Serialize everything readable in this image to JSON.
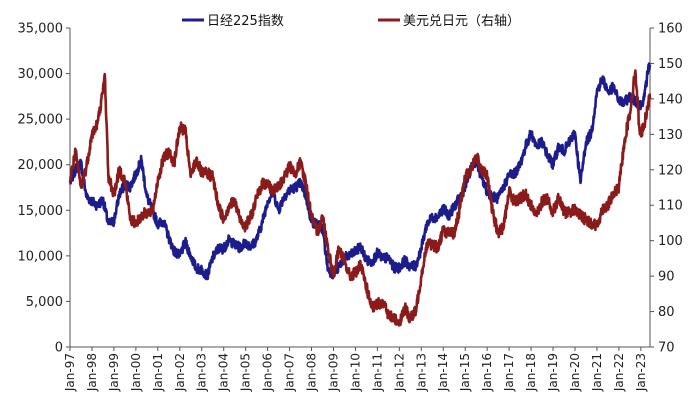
{
  "chart_data": {
    "type": "line",
    "title": "",
    "legend_position": "top",
    "grid": false,
    "x_range": [
      "1997-01",
      "2023-06"
    ],
    "x_tick_labels": [
      "Jan-97",
      "Jan-98",
      "Jan-99",
      "Jan-00",
      "Jan-01",
      "Jan-02",
      "Jan-03",
      "Jan-04",
      "Jan-05",
      "Jan-06",
      "Jan-07",
      "Jan-08",
      "Jan-09",
      "Jan-10",
      "Jan-11",
      "Jan-12",
      "Jan-13",
      "Jan-14",
      "Jan-15",
      "Jan-16",
      "Jan-17",
      "Jan-18",
      "Jan-19",
      "Jan-20",
      "Jan-21",
      "Jan-22",
      "Jan-23"
    ],
    "y_left": {
      "range": [
        0,
        35000
      ],
      "tick_labels": [
        "0",
        "5,000",
        "10,000",
        "15,000",
        "20,000",
        "25,000",
        "30,000",
        "35,000"
      ]
    },
    "y_right": {
      "range": [
        70,
        160
      ],
      "tick_labels": [
        "70",
        "80",
        "90",
        "100",
        "110",
        "120",
        "130",
        "140",
        "150",
        "160"
      ]
    },
    "series": [
      {
        "name": "日经225指数",
        "axis": "left",
        "color": "#1c1c8c",
        "points": [
          [
            "1997-01",
            18000
          ],
          [
            "1997-04",
            19500
          ],
          [
            "1997-07",
            20200
          ],
          [
            "1997-10",
            16500
          ],
          [
            "1998-01",
            16000
          ],
          [
            "1998-04",
            15500
          ],
          [
            "1998-07",
            16200
          ],
          [
            "1998-10",
            13500
          ],
          [
            "1999-01",
            13800
          ],
          [
            "1999-04",
            16800
          ],
          [
            "1999-07",
            17800
          ],
          [
            "1999-10",
            17600
          ],
          [
            "2000-01",
            19000
          ],
          [
            "2000-04",
            20500
          ],
          [
            "2000-07",
            16500
          ],
          [
            "2000-10",
            15000
          ],
          [
            "2001-01",
            13500
          ],
          [
            "2001-04",
            13800
          ],
          [
            "2001-07",
            12000
          ],
          [
            "2001-10",
            10500
          ],
          [
            "2002-01",
            10000
          ],
          [
            "2002-04",
            11500
          ],
          [
            "2002-07",
            10000
          ],
          [
            "2002-10",
            8600
          ],
          [
            "2003-01",
            8500
          ],
          [
            "2003-04",
            7800
          ],
          [
            "2003-07",
            9800
          ],
          [
            "2003-10",
            10800
          ],
          [
            "2004-01",
            10800
          ],
          [
            "2004-04",
            11800
          ],
          [
            "2004-07",
            11200
          ],
          [
            "2004-10",
            10900
          ],
          [
            "2005-01",
            11500
          ],
          [
            "2005-04",
            11000
          ],
          [
            "2005-07",
            11800
          ],
          [
            "2005-10",
            13600
          ],
          [
            "2006-01",
            16000
          ],
          [
            "2006-04",
            17000
          ],
          [
            "2006-07",
            15000
          ],
          [
            "2006-10",
            16500
          ],
          [
            "2007-01",
            17200
          ],
          [
            "2007-04",
            17500
          ],
          [
            "2007-07",
            18000
          ],
          [
            "2007-10",
            16500
          ],
          [
            "2008-01",
            13700
          ],
          [
            "2008-04",
            13500
          ],
          [
            "2008-07",
            13000
          ],
          [
            "2008-10",
            8500
          ],
          [
            "2009-01",
            8000
          ],
          [
            "2009-04",
            8800
          ],
          [
            "2009-07",
            9800
          ],
          [
            "2009-10",
            10000
          ],
          [
            "2010-01",
            10500
          ],
          [
            "2010-04",
            11000
          ],
          [
            "2010-07",
            9500
          ],
          [
            "2010-10",
            9300
          ],
          [
            "2011-01",
            10300
          ],
          [
            "2011-04",
            9700
          ],
          [
            "2011-07",
            9800
          ],
          [
            "2011-10",
            8700
          ],
          [
            "2012-01",
            8700
          ],
          [
            "2012-04",
            9500
          ],
          [
            "2012-07",
            8800
          ],
          [
            "2012-10",
            8900
          ],
          [
            "2013-01",
            10800
          ],
          [
            "2013-04",
            13500
          ],
          [
            "2013-07",
            14200
          ],
          [
            "2013-10",
            14300
          ],
          [
            "2014-01",
            15200
          ],
          [
            "2014-04",
            14400
          ],
          [
            "2014-07",
            15400
          ],
          [
            "2014-10",
            16400
          ],
          [
            "2015-01",
            17500
          ],
          [
            "2015-04",
            19500
          ],
          [
            "2015-07",
            20500
          ],
          [
            "2015-10",
            18500
          ],
          [
            "2016-01",
            17000
          ],
          [
            "2016-04",
            16500
          ],
          [
            "2016-07",
            16300
          ],
          [
            "2016-10",
            17500
          ],
          [
            "2017-01",
            19000
          ],
          [
            "2017-04",
            19000
          ],
          [
            "2017-07",
            20000
          ],
          [
            "2017-10",
            22000
          ],
          [
            "2018-01",
            23500
          ],
          [
            "2018-04",
            22000
          ],
          [
            "2018-07",
            22500
          ],
          [
            "2018-10",
            21000
          ],
          [
            "2019-01",
            20000
          ],
          [
            "2019-04",
            22000
          ],
          [
            "2019-07",
            21500
          ],
          [
            "2019-10",
            22500
          ],
          [
            "2020-01",
            23500
          ],
          [
            "2020-04",
            18000
          ],
          [
            "2020-07",
            22500
          ],
          [
            "2020-10",
            23500
          ],
          [
            "2021-01",
            28000
          ],
          [
            "2021-04",
            29500
          ],
          [
            "2021-07",
            28000
          ],
          [
            "2021-10",
            28500
          ],
          [
            "2022-01",
            27000
          ],
          [
            "2022-04",
            26800
          ],
          [
            "2022-07",
            27500
          ],
          [
            "2022-10",
            27000
          ],
          [
            "2023-01",
            26500
          ],
          [
            "2023-03",
            27500
          ],
          [
            "2023-05",
            30500
          ],
          [
            "2023-06",
            31000
          ]
        ]
      },
      {
        "name": "美元兑日元（右轴）",
        "axis": "right",
        "color": "#8b1a1a",
        "points": [
          [
            "1997-01",
            117
          ],
          [
            "1997-04",
            125
          ],
          [
            "1997-07",
            115
          ],
          [
            "1997-10",
            121
          ],
          [
            "1998-01",
            130
          ],
          [
            "1998-04",
            133
          ],
          [
            "1998-07",
            142
          ],
          [
            "1998-08",
            147
          ],
          [
            "1998-10",
            118
          ],
          [
            "1999-01",
            113
          ],
          [
            "1999-04",
            120
          ],
          [
            "1999-07",
            117
          ],
          [
            "1999-10",
            106
          ],
          [
            "2000-01",
            105
          ],
          [
            "2000-04",
            107
          ],
          [
            "2000-07",
            108
          ],
          [
            "2000-10",
            108
          ],
          [
            "2001-01",
            117
          ],
          [
            "2001-04",
            123
          ],
          [
            "2001-07",
            125
          ],
          [
            "2001-10",
            122
          ],
          [
            "2002-01",
            132
          ],
          [
            "2002-04",
            131
          ],
          [
            "2002-07",
            118
          ],
          [
            "2002-10",
            123
          ],
          [
            "2003-01",
            119
          ],
          [
            "2003-04",
            119
          ],
          [
            "2003-07",
            118
          ],
          [
            "2003-10",
            110
          ],
          [
            "2004-01",
            106
          ],
          [
            "2004-04",
            110
          ],
          [
            "2004-07",
            111
          ],
          [
            "2004-10",
            106
          ],
          [
            "2005-01",
            104
          ],
          [
            "2005-04",
            107
          ],
          [
            "2005-07",
            112
          ],
          [
            "2005-10",
            116
          ],
          [
            "2006-01",
            116
          ],
          [
            "2006-04",
            114
          ],
          [
            "2006-07",
            115
          ],
          [
            "2006-10",
            118
          ],
          [
            "2007-01",
            121
          ],
          [
            "2007-04",
            119
          ],
          [
            "2007-07",
            122
          ],
          [
            "2007-10",
            116
          ],
          [
            "2008-01",
            107
          ],
          [
            "2008-04",
            102
          ],
          [
            "2008-07",
            107
          ],
          [
            "2008-10",
            98
          ],
          [
            "2009-01",
            90
          ],
          [
            "2009-04",
            98
          ],
          [
            "2009-07",
            94
          ],
          [
            "2009-10",
            90
          ],
          [
            "2010-01",
            91
          ],
          [
            "2010-04",
            93
          ],
          [
            "2010-07",
            87
          ],
          [
            "2010-10",
            81
          ],
          [
            "2011-01",
            82
          ],
          [
            "2011-04",
            83
          ],
          [
            "2011-07",
            79
          ],
          [
            "2011-10",
            78
          ],
          [
            "2012-01",
            77
          ],
          [
            "2012-04",
            81
          ],
          [
            "2012-07",
            78
          ],
          [
            "2012-10",
            80
          ],
          [
            "2013-01",
            90
          ],
          [
            "2013-04",
            99
          ],
          [
            "2013-07",
            99
          ],
          [
            "2013-10",
            98
          ],
          [
            "2014-01",
            103
          ],
          [
            "2014-04",
            102
          ],
          [
            "2014-07",
            102
          ],
          [
            "2014-10",
            109
          ],
          [
            "2015-01",
            118
          ],
          [
            "2015-04",
            120
          ],
          [
            "2015-07",
            124
          ],
          [
            "2015-10",
            120
          ],
          [
            "2016-01",
            118
          ],
          [
            "2016-04",
            108
          ],
          [
            "2016-07",
            102
          ],
          [
            "2016-10",
            104
          ],
          [
            "2017-01",
            114
          ],
          [
            "2017-04",
            111
          ],
          [
            "2017-07",
            112
          ],
          [
            "2017-10",
            113
          ],
          [
            "2018-01",
            110
          ],
          [
            "2018-04",
            107
          ],
          [
            "2018-07",
            111
          ],
          [
            "2018-10",
            112
          ],
          [
            "2019-01",
            108
          ],
          [
            "2019-04",
            112
          ],
          [
            "2019-07",
            108
          ],
          [
            "2019-10",
            108
          ],
          [
            "2020-01",
            109
          ],
          [
            "2020-04",
            107
          ],
          [
            "2020-07",
            106
          ],
          [
            "2020-10",
            105
          ],
          [
            "2021-01",
            104
          ],
          [
            "2021-04",
            109
          ],
          [
            "2021-07",
            110
          ],
          [
            "2021-10",
            113
          ],
          [
            "2022-01",
            115
          ],
          [
            "2022-04",
            128
          ],
          [
            "2022-07",
            136
          ],
          [
            "2022-10",
            148
          ],
          [
            "2022-12",
            133
          ],
          [
            "2023-01",
            130
          ],
          [
            "2023-03",
            133
          ],
          [
            "2023-05",
            139
          ],
          [
            "2023-06",
            140
          ]
        ]
      }
    ]
  }
}
